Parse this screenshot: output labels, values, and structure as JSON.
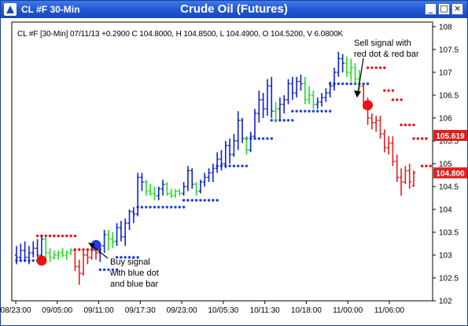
{
  "window": {
    "symbol_label": "CL #F 30-Min",
    "title": "Crude Oil (Futures)",
    "buttons": {
      "minimize": "_",
      "maximize": "□",
      "close": "×"
    }
  },
  "infobar": {
    "text": "CL #F [30-Min] 07/11/13 +0.2900 C 104.8000, H 104.8500, L 104.4900, O 104.5200, V 6.0800K"
  },
  "price_tags": [
    {
      "value": "105.619",
      "color": "#e02020"
    },
    {
      "value": "104.800",
      "color": "#e02020"
    }
  ],
  "annotations": {
    "buy": [
      "Buy signal",
      "with blue dot",
      "and blue bar"
    ],
    "sell": [
      "Sell signal with",
      "red dot & red bar"
    ]
  },
  "colors": {
    "blue": "#1122cc",
    "green": "#22dd22",
    "red": "#e02020",
    "dot_blue": "#1d3fe0",
    "dot_red": "#ee1111"
  },
  "chart_data": {
    "type": "bar",
    "title": "Crude Oil (Futures)",
    "y_ticks": [
      102,
      102.5,
      103,
      103.5,
      104,
      104.5,
      105,
      105.5,
      106,
      106.5,
      107,
      107.5,
      108
    ],
    "ylim": [
      102,
      108.1
    ],
    "x_ticks": [
      "08/23:00",
      "09/05:00",
      "09/11:00",
      "09/17:30",
      "09/23:00",
      "10/05:30",
      "10/11:30",
      "10/18:00",
      "11/00:00",
      "11/06:00"
    ],
    "bars": [
      {
        "o": 103.0,
        "h": 103.2,
        "l": 102.8,
        "c": 102.95,
        "color": "blue"
      },
      {
        "o": 102.95,
        "h": 103.25,
        "l": 102.85,
        "c": 103.1,
        "color": "blue"
      },
      {
        "o": 103.1,
        "h": 103.3,
        "l": 102.85,
        "c": 102.95,
        "color": "blue"
      },
      {
        "o": 102.95,
        "h": 103.2,
        "l": 102.8,
        "c": 103.05,
        "color": "blue"
      },
      {
        "o": 103.05,
        "h": 103.3,
        "l": 102.95,
        "c": 103.15,
        "color": "blue"
      },
      {
        "o": 103.15,
        "h": 103.35,
        "l": 102.95,
        "c": 103.0,
        "color": "blue"
      },
      {
        "o": 103.0,
        "h": 103.45,
        "l": 102.85,
        "c": 103.35,
        "color": "blue"
      },
      {
        "o": 103.35,
        "h": 103.4,
        "l": 102.9,
        "c": 103.05,
        "color": "green"
      },
      {
        "o": 103.05,
        "h": 103.15,
        "l": 102.85,
        "c": 102.95,
        "color": "green"
      },
      {
        "o": 102.95,
        "h": 103.1,
        "l": 102.9,
        "c": 103.0,
        "color": "green"
      },
      {
        "o": 103.0,
        "h": 103.1,
        "l": 102.9,
        "c": 103.05,
        "color": "green"
      },
      {
        "o": 103.05,
        "h": 103.15,
        "l": 102.95,
        "c": 103.0,
        "color": "green"
      },
      {
        "o": 103.0,
        "h": 103.1,
        "l": 102.9,
        "c": 103.05,
        "color": "green"
      },
      {
        "o": 103.05,
        "h": 103.15,
        "l": 103.0,
        "c": 103.1,
        "color": "green"
      },
      {
        "o": 103.1,
        "h": 103.15,
        "l": 102.65,
        "c": 102.75,
        "color": "red"
      },
      {
        "o": 102.75,
        "h": 102.9,
        "l": 102.35,
        "c": 102.6,
        "color": "red"
      },
      {
        "o": 102.6,
        "h": 103.1,
        "l": 102.55,
        "c": 103.0,
        "color": "red"
      },
      {
        "o": 103.0,
        "h": 103.1,
        "l": 102.8,
        "c": 102.95,
        "color": "red"
      },
      {
        "o": 102.95,
        "h": 103.2,
        "l": 102.9,
        "c": 103.1,
        "color": "red"
      },
      {
        "o": 103.1,
        "h": 103.2,
        "l": 102.9,
        "c": 103.05,
        "color": "red"
      },
      {
        "o": 103.05,
        "h": 103.25,
        "l": 102.85,
        "c": 103.2,
        "color": "blue"
      },
      {
        "o": 103.2,
        "h": 103.55,
        "l": 103.05,
        "c": 103.45,
        "color": "blue"
      },
      {
        "o": 103.45,
        "h": 103.55,
        "l": 103.1,
        "c": 103.35,
        "color": "green"
      },
      {
        "o": 103.35,
        "h": 103.5,
        "l": 103.15,
        "c": 103.3,
        "color": "green"
      },
      {
        "o": 103.3,
        "h": 103.7,
        "l": 103.2,
        "c": 103.6,
        "color": "blue"
      },
      {
        "o": 103.6,
        "h": 103.75,
        "l": 103.3,
        "c": 103.4,
        "color": "blue"
      },
      {
        "o": 103.4,
        "h": 103.8,
        "l": 103.2,
        "c": 103.7,
        "color": "blue"
      },
      {
        "o": 103.7,
        "h": 104.0,
        "l": 103.55,
        "c": 103.95,
        "color": "blue"
      },
      {
        "o": 103.95,
        "h": 104.05,
        "l": 103.7,
        "c": 103.9,
        "color": "blue"
      },
      {
        "o": 103.9,
        "h": 104.8,
        "l": 103.85,
        "c": 104.7,
        "color": "blue"
      },
      {
        "o": 104.7,
        "h": 104.8,
        "l": 104.4,
        "c": 104.6,
        "color": "blue"
      },
      {
        "o": 104.6,
        "h": 104.65,
        "l": 104.3,
        "c": 104.4,
        "color": "green"
      },
      {
        "o": 104.4,
        "h": 104.55,
        "l": 104.3,
        "c": 104.35,
        "color": "green"
      },
      {
        "o": 104.35,
        "h": 104.5,
        "l": 104.2,
        "c": 104.3,
        "color": "green"
      },
      {
        "o": 104.3,
        "h": 104.5,
        "l": 104.2,
        "c": 104.45,
        "color": "blue"
      },
      {
        "o": 104.45,
        "h": 104.65,
        "l": 104.3,
        "c": 104.55,
        "color": "blue"
      },
      {
        "o": 104.55,
        "h": 104.6,
        "l": 104.3,
        "c": 104.35,
        "color": "green"
      },
      {
        "o": 104.35,
        "h": 104.45,
        "l": 104.25,
        "c": 104.3,
        "color": "green"
      },
      {
        "o": 104.3,
        "h": 104.45,
        "l": 104.25,
        "c": 104.4,
        "color": "green"
      },
      {
        "o": 104.4,
        "h": 104.45,
        "l": 104.3,
        "c": 104.35,
        "color": "green"
      },
      {
        "o": 104.35,
        "h": 104.6,
        "l": 104.3,
        "c": 104.5,
        "color": "blue"
      },
      {
        "o": 104.5,
        "h": 104.95,
        "l": 104.4,
        "c": 104.85,
        "color": "blue"
      },
      {
        "o": 104.85,
        "h": 104.9,
        "l": 104.45,
        "c": 104.55,
        "color": "blue"
      },
      {
        "o": 104.55,
        "h": 104.6,
        "l": 104.3,
        "c": 104.4,
        "color": "green"
      },
      {
        "o": 104.4,
        "h": 104.65,
        "l": 104.35,
        "c": 104.6,
        "color": "blue"
      },
      {
        "o": 104.6,
        "h": 104.8,
        "l": 104.5,
        "c": 104.7,
        "color": "blue"
      },
      {
        "o": 104.7,
        "h": 104.9,
        "l": 104.6,
        "c": 104.8,
        "color": "blue"
      },
      {
        "o": 104.8,
        "h": 105.0,
        "l": 104.6,
        "c": 104.9,
        "color": "blue"
      },
      {
        "o": 104.9,
        "h": 105.25,
        "l": 104.8,
        "c": 105.1,
        "color": "blue"
      },
      {
        "o": 105.1,
        "h": 105.3,
        "l": 104.85,
        "c": 105.0,
        "color": "blue"
      },
      {
        "o": 105.0,
        "h": 105.5,
        "l": 104.9,
        "c": 105.4,
        "color": "blue"
      },
      {
        "o": 105.4,
        "h": 105.55,
        "l": 105.0,
        "c": 105.2,
        "color": "blue"
      },
      {
        "o": 105.2,
        "h": 105.65,
        "l": 105.15,
        "c": 105.5,
        "color": "blue"
      },
      {
        "o": 105.5,
        "h": 106.15,
        "l": 105.3,
        "c": 105.95,
        "color": "blue"
      },
      {
        "o": 105.95,
        "h": 106.0,
        "l": 105.45,
        "c": 105.55,
        "color": "blue"
      },
      {
        "o": 105.55,
        "h": 105.6,
        "l": 105.2,
        "c": 105.3,
        "color": "green"
      },
      {
        "o": 105.3,
        "h": 105.7,
        "l": 105.25,
        "c": 105.6,
        "color": "blue"
      },
      {
        "o": 105.6,
        "h": 106.2,
        "l": 105.55,
        "c": 106.1,
        "color": "blue"
      },
      {
        "o": 106.1,
        "h": 106.6,
        "l": 105.9,
        "c": 106.4,
        "color": "blue"
      },
      {
        "o": 106.4,
        "h": 106.55,
        "l": 106.0,
        "c": 106.2,
        "color": "blue"
      },
      {
        "o": 106.2,
        "h": 106.85,
        "l": 106.05,
        "c": 106.7,
        "color": "blue"
      },
      {
        "o": 106.7,
        "h": 106.9,
        "l": 106.0,
        "c": 106.15,
        "color": "blue"
      },
      {
        "o": 106.15,
        "h": 106.35,
        "l": 105.9,
        "c": 106.2,
        "color": "green"
      },
      {
        "o": 106.2,
        "h": 106.45,
        "l": 105.95,
        "c": 106.3,
        "color": "blue"
      },
      {
        "o": 106.3,
        "h": 106.5,
        "l": 106.1,
        "c": 106.4,
        "color": "blue"
      },
      {
        "o": 106.4,
        "h": 106.85,
        "l": 106.3,
        "c": 106.75,
        "color": "blue"
      },
      {
        "o": 106.75,
        "h": 106.9,
        "l": 106.4,
        "c": 106.55,
        "color": "blue"
      },
      {
        "o": 106.55,
        "h": 106.9,
        "l": 106.45,
        "c": 106.8,
        "color": "blue"
      },
      {
        "o": 106.8,
        "h": 106.95,
        "l": 106.6,
        "c": 106.75,
        "color": "blue"
      },
      {
        "o": 106.75,
        "h": 106.9,
        "l": 106.3,
        "c": 106.4,
        "color": "green"
      },
      {
        "o": 106.4,
        "h": 106.7,
        "l": 106.3,
        "c": 106.5,
        "color": "green"
      },
      {
        "o": 106.5,
        "h": 106.6,
        "l": 106.2,
        "c": 106.3,
        "color": "green"
      },
      {
        "o": 106.3,
        "h": 106.45,
        "l": 106.2,
        "c": 106.35,
        "color": "blue"
      },
      {
        "o": 106.35,
        "h": 106.55,
        "l": 106.25,
        "c": 106.45,
        "color": "blue"
      },
      {
        "o": 106.45,
        "h": 106.65,
        "l": 106.35,
        "c": 106.55,
        "color": "blue"
      },
      {
        "o": 106.55,
        "h": 106.8,
        "l": 106.45,
        "c": 106.7,
        "color": "blue"
      },
      {
        "o": 106.7,
        "h": 107.1,
        "l": 106.6,
        "c": 107.0,
        "color": "blue"
      },
      {
        "o": 107.0,
        "h": 107.45,
        "l": 106.9,
        "c": 107.3,
        "color": "blue"
      },
      {
        "o": 107.3,
        "h": 107.4,
        "l": 107.0,
        "c": 107.2,
        "color": "blue"
      },
      {
        "o": 107.2,
        "h": 107.35,
        "l": 106.9,
        "c": 107.0,
        "color": "green"
      },
      {
        "o": 107.0,
        "h": 107.3,
        "l": 106.8,
        "c": 107.1,
        "color": "green"
      },
      {
        "o": 107.1,
        "h": 107.2,
        "l": 106.75,
        "c": 106.85,
        "color": "green"
      },
      {
        "o": 106.85,
        "h": 107.05,
        "l": 106.6,
        "c": 106.7,
        "color": "green"
      },
      {
        "o": 106.7,
        "h": 106.75,
        "l": 106.2,
        "c": 106.3,
        "color": "red"
      },
      {
        "o": 106.3,
        "h": 106.45,
        "l": 105.85,
        "c": 106.0,
        "color": "red"
      },
      {
        "o": 106.0,
        "h": 106.1,
        "l": 105.75,
        "c": 105.9,
        "color": "red"
      },
      {
        "o": 105.9,
        "h": 106.05,
        "l": 105.7,
        "c": 105.95,
        "color": "red"
      },
      {
        "o": 105.95,
        "h": 106.05,
        "l": 105.55,
        "c": 105.65,
        "color": "red"
      },
      {
        "o": 105.65,
        "h": 105.75,
        "l": 105.25,
        "c": 105.35,
        "color": "red"
      },
      {
        "o": 105.35,
        "h": 105.6,
        "l": 105.2,
        "c": 105.45,
        "color": "red"
      },
      {
        "o": 105.45,
        "h": 105.6,
        "l": 104.95,
        "c": 105.05,
        "color": "red"
      },
      {
        "o": 105.05,
        "h": 105.2,
        "l": 104.6,
        "c": 104.7,
        "color": "red"
      },
      {
        "o": 104.7,
        "h": 104.9,
        "l": 104.3,
        "c": 104.6,
        "color": "red"
      },
      {
        "o": 104.6,
        "h": 104.95,
        "l": 104.55,
        "c": 104.85,
        "color": "red"
      },
      {
        "o": 104.85,
        "h": 105.0,
        "l": 104.45,
        "c": 104.6,
        "color": "red"
      },
      {
        "o": 104.52,
        "h": 104.85,
        "l": 104.49,
        "c": 104.8,
        "color": "red"
      }
    ],
    "stops": [
      {
        "start": 0,
        "end": 6,
        "y": 102.88,
        "color": "dot_blue"
      },
      {
        "start": 5,
        "end": 14,
        "y": 103.42,
        "color": "dot_red"
      },
      {
        "start": 14,
        "end": 20,
        "y": 103.12,
        "color": "dot_red"
      },
      {
        "start": 20,
        "end": 24,
        "y": 102.68,
        "color": "dot_blue"
      },
      {
        "start": 24,
        "end": 29,
        "y": 102.95,
        "color": "dot_blue"
      },
      {
        "start": 29,
        "end": 40,
        "y": 104.05,
        "color": "dot_blue"
      },
      {
        "start": 40,
        "end": 48,
        "y": 104.2,
        "color": "dot_blue"
      },
      {
        "start": 48,
        "end": 55,
        "y": 104.95,
        "color": "dot_blue"
      },
      {
        "start": 55,
        "end": 61,
        "y": 105.55,
        "color": "dot_blue"
      },
      {
        "start": 61,
        "end": 66,
        "y": 105.95,
        "color": "dot_blue"
      },
      {
        "start": 66,
        "end": 75,
        "y": 106.15,
        "color": "dot_blue"
      },
      {
        "start": 75,
        "end": 84,
        "y": 106.75,
        "color": "dot_blue"
      },
      {
        "start": 84,
        "end": 88,
        "y": 107.1,
        "color": "dot_red"
      },
      {
        "start": 88,
        "end": 90,
        "y": 106.6,
        "color": "dot_red"
      },
      {
        "start": 90,
        "end": 92,
        "y": 106.4,
        "color": "dot_red"
      },
      {
        "start": 92,
        "end": 95,
        "y": 105.85,
        "color": "dot_red"
      },
      {
        "start": 95,
        "end": 98,
        "y": 105.55,
        "color": "dot_red"
      },
      {
        "start": 97,
        "end": 99,
        "y": 104.95,
        "color": "dot_red"
      }
    ],
    "signals": [
      {
        "type": "sell",
        "bar": 6,
        "y": 102.88,
        "color": "dot_red"
      },
      {
        "type": "buy",
        "bar": 19,
        "y": 103.22,
        "color": "dot_blue"
      },
      {
        "type": "sell",
        "bar": 84,
        "y": 106.28,
        "color": "dot_red"
      }
    ]
  }
}
